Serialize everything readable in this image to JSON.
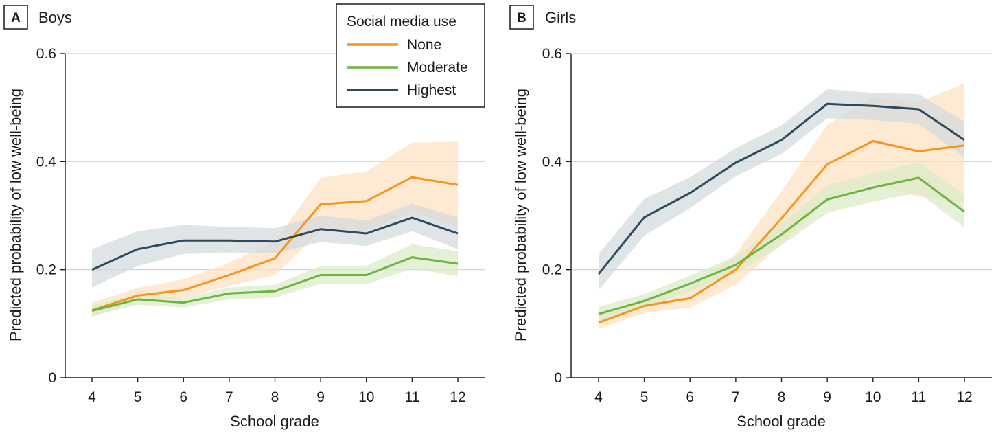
{
  "chart_data": [
    {
      "type": "line",
      "panel_letter": "A",
      "title": "Boys",
      "xlabel": "School grade",
      "ylabel": "Predicted probability of low well-being",
      "x": [
        4,
        5,
        6,
        7,
        8,
        9,
        10,
        11,
        12
      ],
      "x_tick_labels": [
        "4",
        "5",
        "6",
        "7",
        "8",
        "9",
        "10",
        "11",
        "12"
      ],
      "ylim": [
        0,
        0.6
      ],
      "y_ticks": [
        0,
        0.2,
        0.4,
        0.6
      ],
      "y_tick_labels": [
        "0",
        "0.2",
        "0.4",
        "0.6"
      ],
      "grid": "horizontal",
      "series": [
        {
          "name": "None",
          "color": "#f7941d",
          "band_color": "#fde0c0",
          "values": [
            0.125,
            0.152,
            0.162,
            0.19,
            0.221,
            0.321,
            0.327,
            0.371,
            0.357
          ],
          "lower": [
            0.113,
            0.142,
            0.148,
            0.17,
            0.19,
            0.272,
            0.272,
            0.307,
            0.278
          ],
          "upper": [
            0.139,
            0.166,
            0.182,
            0.213,
            0.252,
            0.37,
            0.382,
            0.435,
            0.437
          ]
        },
        {
          "name": "Moderate",
          "color": "#6db33f",
          "band_color": "#d9ecc8",
          "values": [
            0.124,
            0.145,
            0.139,
            0.156,
            0.16,
            0.19,
            0.19,
            0.223,
            0.211
          ],
          "lower": [
            0.114,
            0.135,
            0.13,
            0.145,
            0.148,
            0.174,
            0.173,
            0.202,
            0.188
          ],
          "upper": [
            0.134,
            0.155,
            0.148,
            0.167,
            0.172,
            0.207,
            0.207,
            0.247,
            0.234
          ]
        },
        {
          "name": "Highest",
          "color": "#2e4a5a",
          "band_color": "#d3dade",
          "values": [
            0.2,
            0.238,
            0.254,
            0.254,
            0.252,
            0.275,
            0.267,
            0.296,
            0.267
          ],
          "lower": [
            0.167,
            0.207,
            0.229,
            0.232,
            0.23,
            0.251,
            0.244,
            0.271,
            0.238
          ],
          "upper": [
            0.238,
            0.271,
            0.283,
            0.279,
            0.277,
            0.3,
            0.291,
            0.322,
            0.297
          ]
        }
      ]
    },
    {
      "type": "line",
      "panel_letter": "B",
      "title": "Girls",
      "xlabel": "School grade",
      "ylabel": "Predicted probability of low well-being",
      "x": [
        4,
        5,
        6,
        7,
        8,
        9,
        10,
        11,
        12
      ],
      "x_tick_labels": [
        "4",
        "5",
        "6",
        "7",
        "8",
        "9",
        "10",
        "11",
        "12"
      ],
      "ylim": [
        0,
        0.6
      ],
      "y_ticks": [
        0,
        0.2,
        0.4,
        0.6
      ],
      "y_tick_labels": [
        "0",
        "0.2",
        "0.4",
        "0.6"
      ],
      "grid": "horizontal",
      "series": [
        {
          "name": "None",
          "color": "#f7941d",
          "band_color": "#fde0c0",
          "values": [
            0.102,
            0.133,
            0.147,
            0.2,
            0.295,
            0.395,
            0.438,
            0.419,
            0.43
          ],
          "lower": [
            0.09,
            0.12,
            0.13,
            0.172,
            0.248,
            0.33,
            0.36,
            0.335,
            0.325
          ],
          "upper": [
            0.116,
            0.147,
            0.167,
            0.229,
            0.345,
            0.468,
            0.52,
            0.51,
            0.545
          ]
        },
        {
          "name": "Moderate",
          "color": "#6db33f",
          "band_color": "#d9ecc8",
          "values": [
            0.118,
            0.142,
            0.174,
            0.209,
            0.265,
            0.33,
            0.352,
            0.37,
            0.307
          ],
          "lower": [
            0.105,
            0.13,
            0.16,
            0.193,
            0.245,
            0.305,
            0.326,
            0.342,
            0.278
          ],
          "upper": [
            0.131,
            0.155,
            0.189,
            0.225,
            0.286,
            0.356,
            0.378,
            0.4,
            0.338
          ]
        },
        {
          "name": "Highest",
          "color": "#2e4a5a",
          "band_color": "#d3dade",
          "values": [
            0.192,
            0.297,
            0.342,
            0.398,
            0.44,
            0.507,
            0.503,
            0.497,
            0.44
          ],
          "lower": [
            0.162,
            0.263,
            0.314,
            0.373,
            0.414,
            0.48,
            0.477,
            0.47,
            0.408
          ],
          "upper": [
            0.229,
            0.331,
            0.371,
            0.425,
            0.467,
            0.534,
            0.527,
            0.525,
            0.474
          ]
        }
      ]
    }
  ],
  "legend": {
    "title": "Social media use",
    "placement": "top-right of panel A",
    "items": [
      {
        "label": "None",
        "color": "#f7941d"
      },
      {
        "label": "Moderate",
        "color": "#6db33f"
      },
      {
        "label": "Highest",
        "color": "#2e4a5a"
      }
    ]
  }
}
